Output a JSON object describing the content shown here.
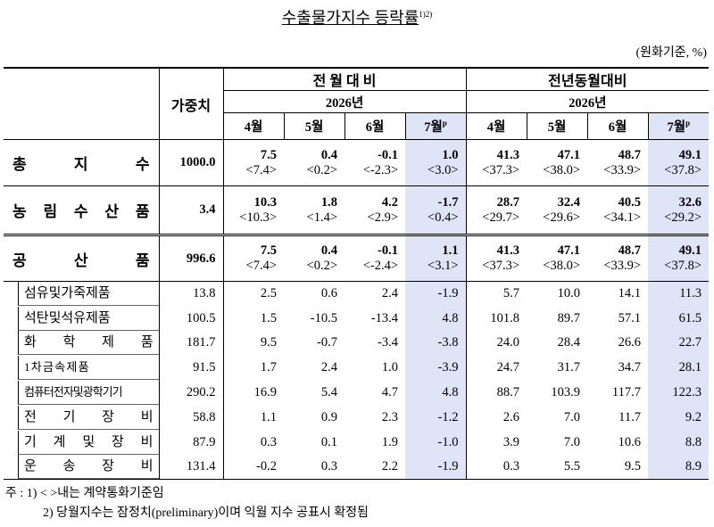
{
  "title": "수출물가지수 등락률",
  "title_note": "1)2)",
  "unit": "(원화기준, %)",
  "header": {
    "weight": "가중치",
    "groups": [
      {
        "label": "전 월 대 비",
        "year": "2026년"
      },
      {
        "label": "전년동월대비",
        "year": "2026년"
      }
    ],
    "months": [
      "4월",
      "5월",
      "6월",
      "7월"
    ],
    "preliminary": "p"
  },
  "main_rows": [
    {
      "label": "총 지 수",
      "weight": "1000.0",
      "mom": [
        "7.5",
        "0.4",
        "-0.1",
        "1.0"
      ],
      "mom_contract": [
        "<7.4>",
        "<0.2>",
        "<-2.3>",
        "<3.0>"
      ],
      "yoy": [
        "41.3",
        "47.1",
        "48.7",
        "49.1"
      ],
      "yoy_contract": [
        "<37.3>",
        "<38.0>",
        "<33.9>",
        "<37.8>"
      ]
    },
    {
      "label": "농 림 수 산 품",
      "weight": "3.4",
      "mom": [
        "10.3",
        "1.8",
        "4.2",
        "-1.7"
      ],
      "mom_contract": [
        "<10.3>",
        "<1.4>",
        "<2.9>",
        "<0.4>"
      ],
      "yoy": [
        "28.7",
        "32.4",
        "40.5",
        "32.6"
      ],
      "yoy_contract": [
        "<29.7>",
        "<29.6>",
        "<34.1>",
        "<29.2>"
      ]
    },
    {
      "label": "공 산 품",
      "weight": "996.6",
      "mom": [
        "7.5",
        "0.4",
        "-0.1",
        "1.1"
      ],
      "mom_contract": [
        "<7.4>",
        "<0.2>",
        "<-2.4>",
        "<3.1>"
      ],
      "yoy": [
        "41.3",
        "47.1",
        "48.7",
        "49.1"
      ],
      "yoy_contract": [
        "<37.3>",
        "<38.0>",
        "<33.9>",
        "<37.8>"
      ]
    }
  ],
  "sub_rows": [
    {
      "label": "섬유및가죽제품",
      "weight": "13.8",
      "mom": [
        "2.5",
        "0.6",
        "2.4",
        "-1.9"
      ],
      "yoy": [
        "5.7",
        "10.0",
        "14.1",
        "11.3"
      ]
    },
    {
      "label": "석탄및석유제품",
      "weight": "100.5",
      "mom": [
        "1.5",
        "-10.5",
        "-13.4",
        "4.8"
      ],
      "yoy": [
        "101.8",
        "89.7",
        "57.1",
        "61.5"
      ]
    },
    {
      "label": "화 학 제 품",
      "weight": "181.7",
      "mom": [
        "9.5",
        "-0.7",
        "-3.4",
        "-3.8"
      ],
      "yoy": [
        "24.0",
        "28.4",
        "26.6",
        "22.7"
      ]
    },
    {
      "label": "1 차 금 속 제 품",
      "weight": "91.5",
      "mom": [
        "1.7",
        "2.4",
        "1.0",
        "-3.9"
      ],
      "yoy": [
        "24.7",
        "31.7",
        "34.7",
        "28.1"
      ]
    },
    {
      "label": "컴퓨터전자및광학기기",
      "weight": "290.2",
      "mom": [
        "16.9",
        "5.4",
        "4.7",
        "4.8"
      ],
      "yoy": [
        "88.7",
        "103.9",
        "117.7",
        "122.3"
      ]
    },
    {
      "label": "전 기 장 비",
      "weight": "58.8",
      "mom": [
        "1.1",
        "0.9",
        "2.3",
        "-1.2"
      ],
      "yoy": [
        "2.6",
        "7.0",
        "11.7",
        "9.2"
      ]
    },
    {
      "label": "기 계 및 장 비",
      "weight": "87.9",
      "mom": [
        "0.3",
        "0.1",
        "1.9",
        "-1.0"
      ],
      "yoy": [
        "3.9",
        "7.0",
        "10.6",
        "8.8"
      ]
    },
    {
      "label": "운 송 장 비",
      "weight": "131.4",
      "mom": [
        "-0.2",
        "0.3",
        "2.2",
        "-1.9"
      ],
      "yoy": [
        "0.3",
        "5.5",
        "9.5",
        "8.9"
      ]
    }
  ],
  "notes": {
    "prefix": "주 :",
    "items": [
      "1) < >내는 계약통화기준임",
      "2) 당월지수는 잠정치(preliminary)이며 익월 지수 공표시 확정됨"
    ]
  }
}
